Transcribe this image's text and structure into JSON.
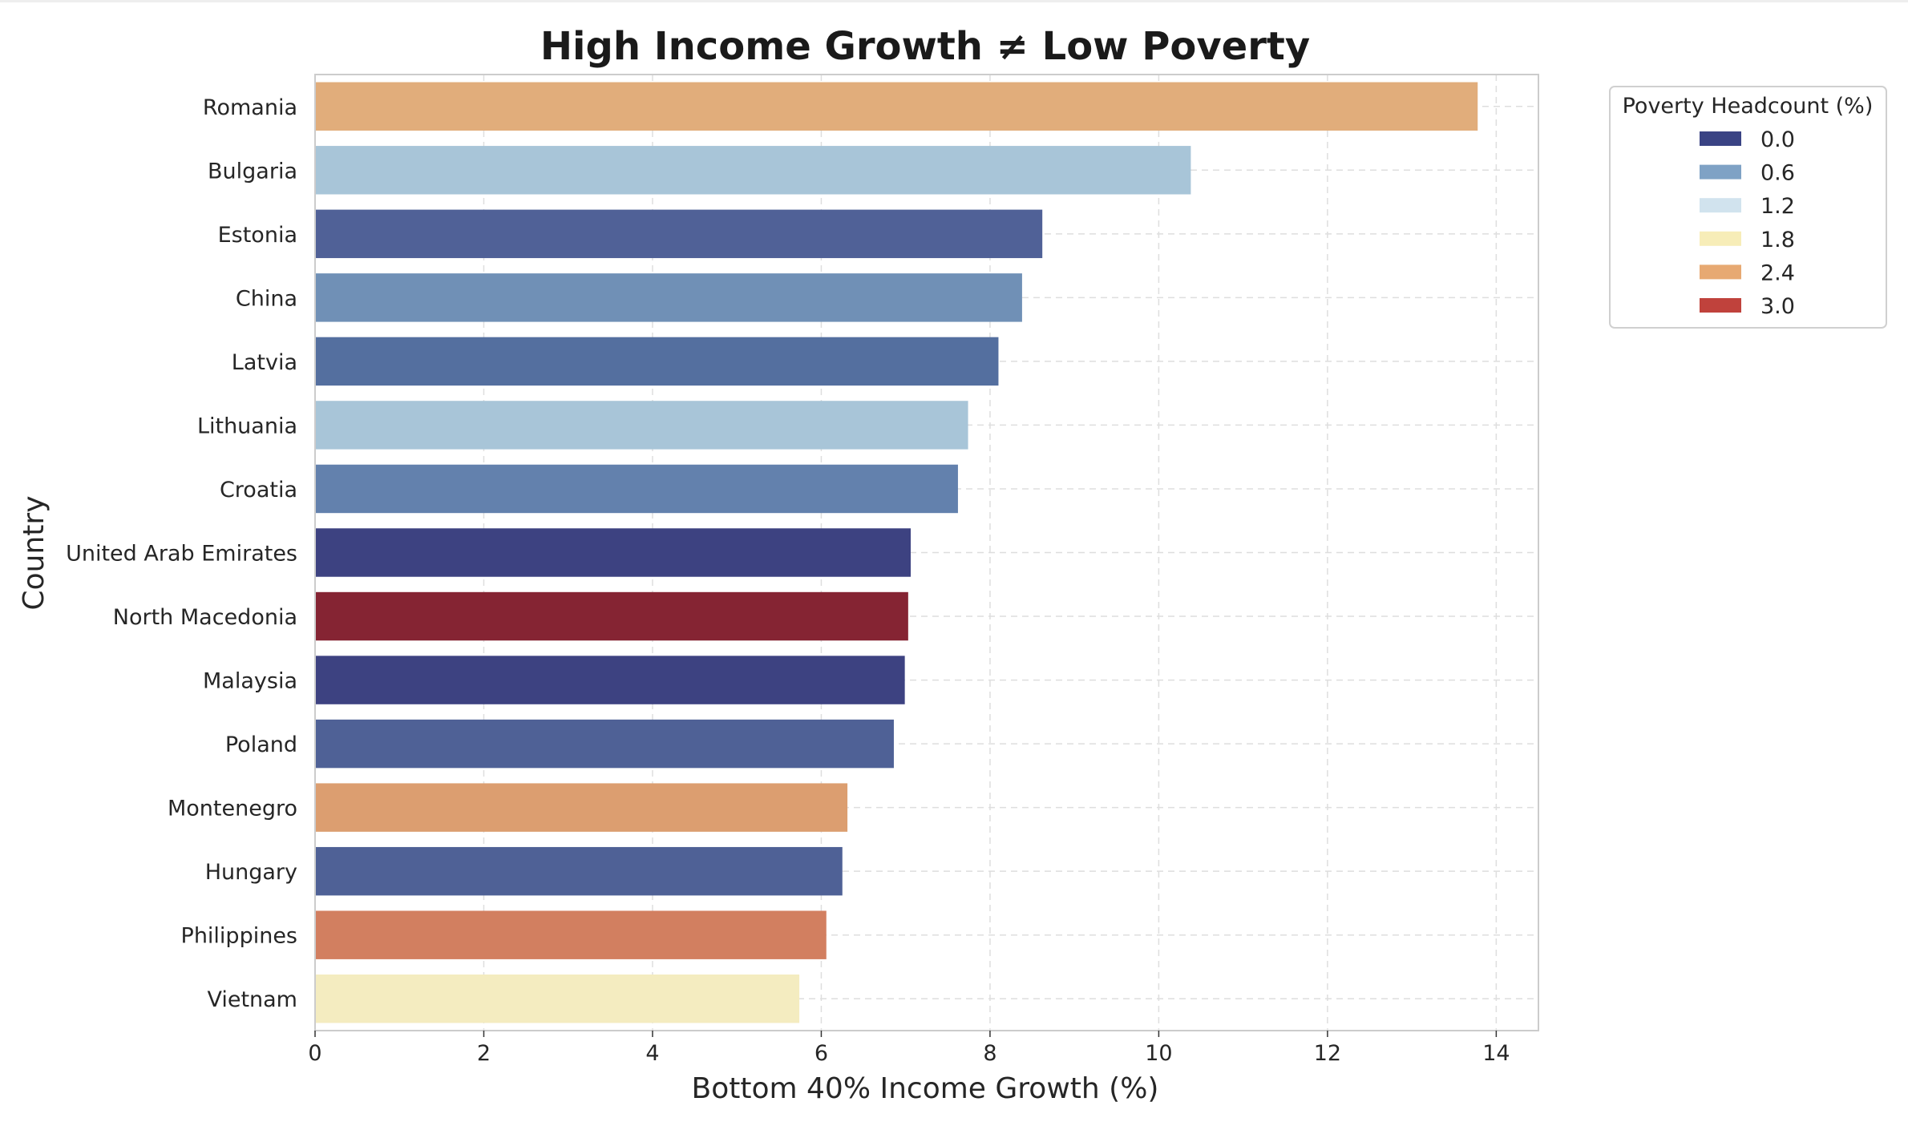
{
  "chart_data": {
    "type": "bar",
    "orientation": "horizontal",
    "title": "High Income Growth ≠ Low Poverty",
    "xlabel": "Bottom 40% Income Growth (%)",
    "ylabel": "Country",
    "xlim": [
      0,
      14.5
    ],
    "xticks": [
      0,
      2,
      4,
      6,
      8,
      10,
      12,
      14
    ],
    "grid": true,
    "categories": [
      "Romania",
      "Bulgaria",
      "Estonia",
      "China",
      "Latvia",
      "Lithuania",
      "Croatia",
      "United Arab Emirates",
      "North Macedonia",
      "Malaysia",
      "Poland",
      "Montenegro",
      "Hungary",
      "Philippines",
      "Vietnam"
    ],
    "values": [
      13.78,
      10.38,
      8.62,
      8.38,
      8.1,
      7.74,
      7.62,
      7.06,
      7.03,
      6.99,
      6.86,
      6.31,
      6.25,
      6.06,
      5.74
    ],
    "bar_colors": [
      "#e1ad7b",
      "#a8c5d8",
      "#506197",
      "#7090b6",
      "#546f9f",
      "#a8c5d8",
      "#6381ad",
      "#3d4281",
      "#852433",
      "#3d4281",
      "#4f6196",
      "#dc9e70",
      "#4f6196",
      "#d27f60",
      "#f4ecc0"
    ],
    "legend": {
      "title": "Poverty Headcount (%)",
      "placement": "outside upper right",
      "entries": [
        {
          "label": "0.0",
          "color": "#3a4384"
        },
        {
          "label": "0.6",
          "color": "#7fa2c5"
        },
        {
          "label": "1.2",
          "color": "#d1e3ee"
        },
        {
          "label": "1.8",
          "color": "#f7edb8"
        },
        {
          "label": "2.4",
          "color": "#e7a972"
        },
        {
          "label": "3.0",
          "color": "#c0423c"
        }
      ]
    }
  }
}
